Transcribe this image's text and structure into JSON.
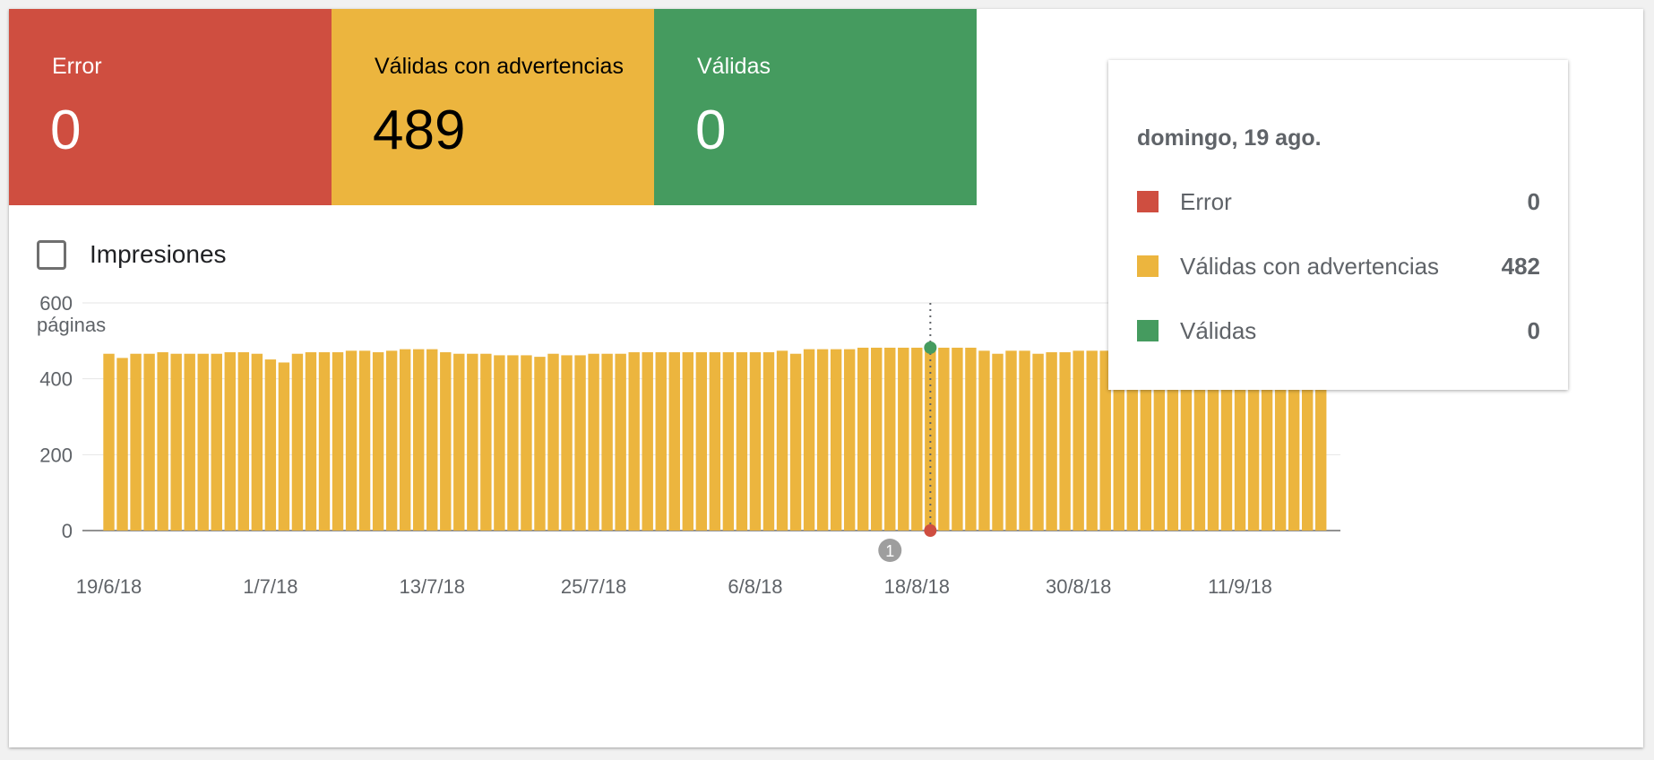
{
  "tiles": [
    {
      "label": "Error",
      "value": "0",
      "color": "#cf4e40"
    },
    {
      "label": "Válidas con advertencias",
      "value": "489",
      "color": "#ecb53e"
    },
    {
      "label": "Válidas",
      "value": "0",
      "color": "#459b5f"
    }
  ],
  "impressions_label": "Impresiones",
  "tooltip": {
    "date": "domingo, 19 ago.",
    "rows": [
      {
        "name": "Error",
        "value": "0",
        "color": "#cf4e40"
      },
      {
        "name": "Válidas con advertencias",
        "value": "482",
        "color": "#ecb53e"
      },
      {
        "name": "Válidas",
        "value": "0",
        "color": "#459b5f"
      }
    ]
  },
  "chart_data": {
    "type": "bar",
    "ylabel": "páginas",
    "ylim": [
      0,
      600
    ],
    "yticks": [
      0,
      200,
      400,
      600
    ],
    "xticks": [
      "19/6/18",
      "1/7/18",
      "13/7/18",
      "25/7/18",
      "6/8/18",
      "18/8/18",
      "30/8/18",
      "11/9/18"
    ],
    "x_start": "19/6/18",
    "x_end": "22/9/18",
    "highlight_date": "19/8/18",
    "annotation": {
      "date": "16/8/18",
      "label": "1"
    },
    "bar_color": "#ecb53e",
    "grid": true,
    "series": [
      {
        "name": "Válidas con advertencias",
        "values": [
          466,
          455,
          466,
          466,
          470,
          466,
          466,
          466,
          466,
          470,
          470,
          466,
          451,
          443,
          466,
          470,
          470,
          470,
          474,
          474,
          470,
          474,
          478,
          478,
          478,
          470,
          466,
          466,
          466,
          462,
          462,
          462,
          458,
          466,
          462,
          462,
          466,
          466,
          466,
          470,
          470,
          470,
          470,
          470,
          470,
          470,
          470,
          470,
          470,
          470,
          474,
          466,
          478,
          478,
          478,
          478,
          482,
          482,
          482,
          482,
          482,
          482,
          482,
          482,
          482,
          474,
          466,
          474,
          474,
          466,
          470,
          470,
          474,
          474,
          474,
          474,
          470,
          474,
          478,
          478,
          478,
          478,
          478,
          482,
          482,
          486,
          486,
          486,
          486,
          489,
          489
        ]
      }
    ]
  }
}
